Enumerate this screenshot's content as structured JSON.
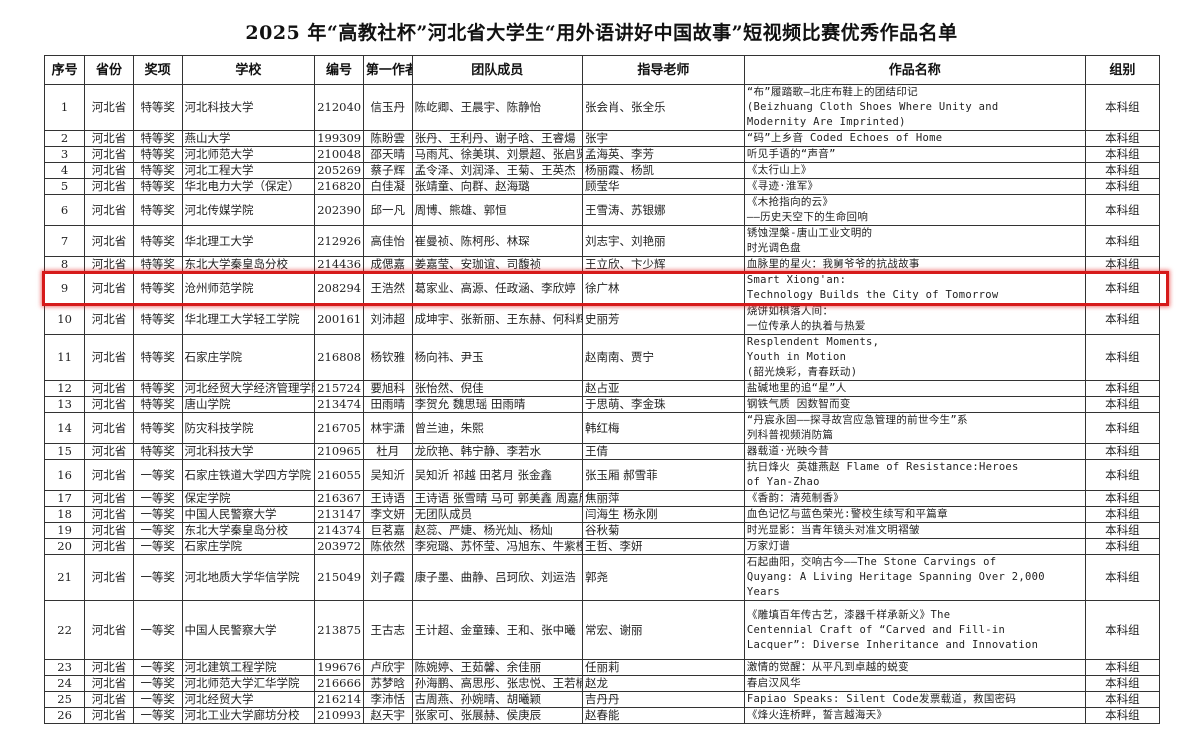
{
  "title": "2025 年“高教社杯”河北省大学生“用外语讲好中国故事”短视频比赛优秀作品名单",
  "highlight_color": "#d61a1a",
  "highlighted_row": 9,
  "columns": [
    "序号",
    "省份",
    "奖项",
    "学校",
    "编号",
    "第一作者",
    "团队成员",
    "指导老师",
    "作品名称",
    "组别"
  ],
  "rows": [
    {
      "no": "1",
      "province": "河北省",
      "award": "特等奖",
      "school": "河北科技大学",
      "id": "212040",
      "author": "信玉丹",
      "members": "陈屹卿、王晨宇、陈静怡",
      "advisor": "张会肖、张全乐",
      "work": "“布”履踏歌—北庄布鞋上的团结印记\n(Beizhuang Cloth Shoes Where Unity and\nModernity Are Imprinted)",
      "group": "本科组"
    },
    {
      "no": "2",
      "province": "河北省",
      "award": "特等奖",
      "school": "燕山大学",
      "id": "199309",
      "author": "陈盼雲",
      "members": "张丹、王利丹、谢子晗、王睿煬",
      "advisor": "张宇",
      "work": "“码”上乡音 Coded Echoes of Home",
      "group": "本科组"
    },
    {
      "no": "3",
      "province": "河北省",
      "award": "特等奖",
      "school": "河北师范大学",
      "id": "210048",
      "author": "邵天晴",
      "members": "马雨芃、徐美琪、刘景超、张启贤",
      "advisor": "孟海英、李芳",
      "work": "听见手语的“声音”",
      "group": "本科组"
    },
    {
      "no": "4",
      "province": "河北省",
      "award": "特等奖",
      "school": "河北工程大学",
      "id": "205269",
      "author": "蔡子辉",
      "members": "孟令泽、刘润泽、王菊、王英杰",
      "advisor": "杨丽霞、杨凯",
      "work": "《太行山上》",
      "group": "本科组"
    },
    {
      "no": "5",
      "province": "河北省",
      "award": "特等奖",
      "school": "华北电力大学（保定）",
      "id": "216820",
      "author": "白佳凝",
      "members": "张靖童、向群、赵海璐",
      "advisor": "顾莹华",
      "work": "《寻迹·淮军》",
      "group": "本科组"
    },
    {
      "no": "6",
      "province": "河北省",
      "award": "特等奖",
      "school": "河北传媒学院",
      "id": "202390",
      "author": "邱一凡",
      "members": "周博、熊雄、郭恒",
      "advisor": "王雪涛、苏银娜",
      "work": "《木抢指向的云》\n——历史天空下的生命回响",
      "group": "本科组"
    },
    {
      "no": "7",
      "province": "河北省",
      "award": "特等奖",
      "school": "华北理工大学",
      "id": "212926",
      "author": "高佳怡",
      "members": "崔曼祯、陈柯彤、林琛",
      "advisor": "刘志宇、刘艳丽",
      "work": "锈蚀涅槃-唐山工业文明的\n时光调色盘",
      "group": "本科组"
    },
    {
      "no": "8",
      "province": "河北省",
      "award": "特等奖",
      "school": "东北大学秦皇岛分校",
      "id": "214436",
      "author": "成偲嘉",
      "members": "姜嘉莹、安珈谊、司馥祯",
      "advisor": "王立欣、卞少辉",
      "work": "血脉里的星火：我舅爷爷的抗战故事",
      "group": "本科组"
    },
    {
      "no": "9",
      "province": "河北省",
      "award": "特等奖",
      "school": "沧州师范学院",
      "id": "208294",
      "author": "王浩然",
      "members": "葛家业、高源、任政涵、李欣婷",
      "advisor": "徐广林",
      "work": "Smart Xiong'an:\n Technology Builds the City of Tomorrow",
      "group": "本科组"
    },
    {
      "no": "10",
      "province": "河北省",
      "award": "特等奖",
      "school": "华北理工大学轻工学院",
      "id": "200161",
      "author": "刘沛超",
      "members": "成坤宇、张新丽、王东赫、何科辉",
      "advisor": "史丽芳",
      "work": "烧饼如棋落人间：\n一位传承人的执着与热爱",
      "group": "本科组"
    },
    {
      "no": "11",
      "province": "河北省",
      "award": "特等奖",
      "school": "石家庄学院",
      "id": "216808",
      "author": "杨钦雅",
      "members": "杨向祎、尹玉",
      "advisor": "赵南南、贾宁",
      "work": "Resplendent Moments,\nYouth in Motion\n(韶光焕彩，青春跃动)",
      "group": "本科组"
    },
    {
      "no": "12",
      "province": "河北省",
      "award": "特等奖",
      "school": "河北经贸大学经济管理学院",
      "id": "215724",
      "author": "要旭科",
      "members": "张怡然、倪佳",
      "advisor": "赵占亚",
      "work": "盐碱地里的追“星”人",
      "group": "本科组"
    },
    {
      "no": "13",
      "province": "河北省",
      "award": "特等奖",
      "school": "唐山学院",
      "id": "213474",
      "author": "田雨晴",
      "members": "李贺允  魏思瑶  田雨晴",
      "advisor": "于思萌、李金珠",
      "work": "钢铁气质  因数智而变",
      "group": "本科组"
    },
    {
      "no": "14",
      "province": "河北省",
      "award": "特等奖",
      "school": "防灾科技学院",
      "id": "216705",
      "author": "林宇潇",
      "members": "曾兰迪，朱熙",
      "advisor": "韩红梅",
      "work": "“丹宸永固——探寻故宫应急管理的前世今生”系\n列科普视频消防篇",
      "group": "本科组"
    },
    {
      "no": "15",
      "province": "河北省",
      "award": "特等奖",
      "school": "河北科技大学",
      "id": "210965",
      "author": "杜月",
      "members": "龙欣艳、韩宁静、李若水",
      "advisor": "王倩",
      "work": "器载道·光映今昔",
      "group": "本科组"
    },
    {
      "no": "16",
      "province": "河北省",
      "award": "一等奖",
      "school": "石家庄铁道大学四方学院",
      "id": "216055",
      "author": "吴知沂",
      "members": "吴知沂 祁越 田茗月 张金鑫",
      "advisor": "张玉厢 郝雪菲",
      "work": "抗日烽火 英雄燕赵 Flame of Resistance:Heroes\nof Yan-Zhao",
      "group": "本科组"
    },
    {
      "no": "17",
      "province": "河北省",
      "award": "一等奖",
      "school": "保定学院",
      "id": "216367",
      "author": "王诗语",
      "members": "王诗语 张雪晴 马可 郭美鑫 周嘉欣",
      "advisor": "焦丽萍",
      "work": "《香韵：清苑制香》",
      "group": "本科组"
    },
    {
      "no": "18",
      "province": "河北省",
      "award": "一等奖",
      "school": "中国人民警察大学",
      "id": "213147",
      "author": "李文妍",
      "members": "无团队成员",
      "advisor": "闫海生  杨永刚",
      "work": "血色记忆与蓝色荣光:警校生续写和平篇章",
      "group": "本科组"
    },
    {
      "no": "19",
      "province": "河北省",
      "award": "一等奖",
      "school": "东北大学秦皇岛分校",
      "id": "214374",
      "author": "巨茗嘉",
      "members": "赵蕊、严婕、杨光灿、杨灿",
      "advisor": "谷秋菊",
      "work": "时光显影：当青年镜头对准文明褶皱",
      "group": "本科组"
    },
    {
      "no": "20",
      "province": "河北省",
      "award": "一等奖",
      "school": "石家庄学院",
      "id": "203972",
      "author": "陈依然",
      "members": "李宛璐、苏怀莹、冯旭东、牛紫橙",
      "advisor": "王哲、李妍",
      "work": "万家灯谱",
      "group": "本科组"
    },
    {
      "no": "21",
      "province": "河北省",
      "award": "一等奖",
      "school": "河北地质大学华信学院",
      "id": "215049",
      "author": "刘子霞",
      "members": "康子墨、曲静、吕珂欣、刘运浩",
      "advisor": "郭尧",
      "work": "石起曲阳，交响古今——The Stone Carvings of\nQuyang: A Living Heritage Spanning Over 2,000\nYears",
      "group": "本科组"
    },
    {
      "no": "22",
      "province": "河北省",
      "award": "一等奖",
      "school": "中国人民警察大学",
      "id": "213875",
      "author": "王古志",
      "members": "王计超、金童臻、王和、张中曦",
      "advisor": "常宏、谢丽",
      "work": "《雕填百年传古艺，漆器千样承新义》The\nCentennial Craft of “Carved and Fill-in\nLacquer”: Diverse Inheritance and Innovation",
      "group": "本科组"
    },
    {
      "no": "23",
      "province": "河北省",
      "award": "一等奖",
      "school": "河北建筑工程学院",
      "id": "199676",
      "author": "卢欣宇",
      "members": "陈婉婷、王茹馨、余佳丽",
      "advisor": "任丽莉",
      "work": "激情的觉醒：从平凡到卓越的蜕变",
      "group": "本科组"
    },
    {
      "no": "24",
      "province": "河北省",
      "award": "一等奖",
      "school": "河北师范大学汇华学院",
      "id": "216666",
      "author": "苏梦晗",
      "members": "孙海鹏、高思彤、张忠悦、王若楠",
      "advisor": "赵龙",
      "work": "春启汉风华",
      "group": "本科组"
    },
    {
      "no": "25",
      "province": "河北省",
      "award": "一等奖",
      "school": "河北经贸大学",
      "id": "216214",
      "author": "李沛恬",
      "members": "古周燕、孙婉晴、胡曦颖",
      "advisor": "吉丹丹",
      "work": "Fapiao Speaks: Silent Code发票载道，救国密码",
      "group": "本科组"
    },
    {
      "no": "26",
      "province": "河北省",
      "award": "一等奖",
      "school": "河北工业大学廊坊分校",
      "id": "210993",
      "author": "赵天宇",
      "members": "张家可、张展赫、侯庚辰",
      "advisor": "赵春能",
      "work": "《烽火连桥畔，誓言越海天》",
      "group": "本科组"
    }
  ]
}
